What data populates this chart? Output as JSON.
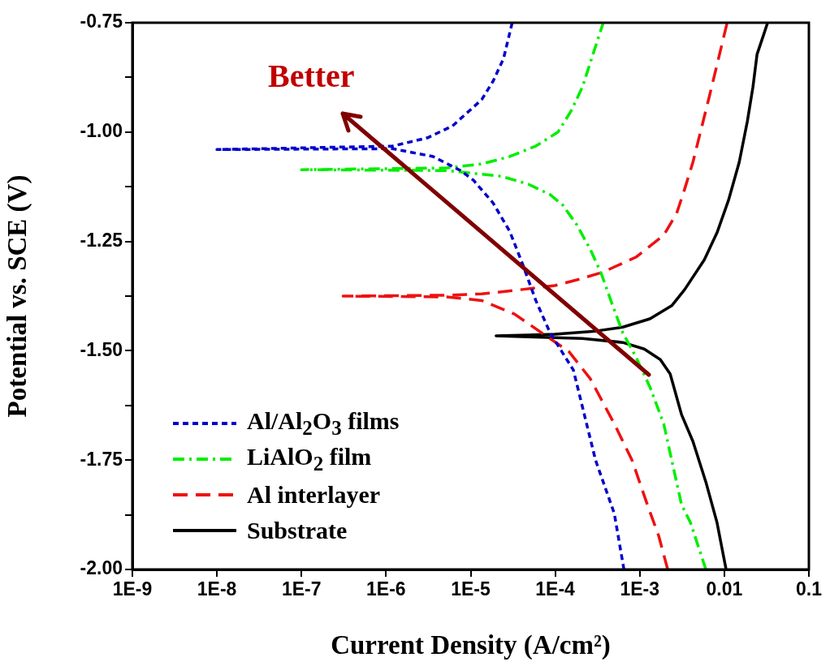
{
  "chart_data": {
    "type": "line",
    "xlabel": "Current Density (A/cm²)",
    "ylabel": "Potential vs. SCE (V)",
    "log": "x",
    "xlim": [
      1e-09,
      0.1
    ],
    "ylim": [
      -2.0,
      -0.75
    ],
    "xticks": [
      {
        "value": 1e-09,
        "label": "1E-9"
      },
      {
        "value": 1e-08,
        "label": "1E-8"
      },
      {
        "value": 1e-07,
        "label": "1E-7"
      },
      {
        "value": 1e-06,
        "label": "1E-6"
      },
      {
        "value": 1e-05,
        "label": "1E-5"
      },
      {
        "value": 0.0001,
        "label": "1E-4"
      },
      {
        "value": 0.001,
        "label": "1E-3"
      },
      {
        "value": 0.01,
        "label": "0.01"
      },
      {
        "value": 0.1,
        "label": "0.1"
      }
    ],
    "yticks": [
      {
        "value": -2.0,
        "label": "-2.00"
      },
      {
        "value": -1.875,
        "label": null
      },
      {
        "value": -1.75,
        "label": "-1.75"
      },
      {
        "value": -1.625,
        "label": null
      },
      {
        "value": -1.5,
        "label": "-1.50"
      },
      {
        "value": -1.375,
        "label": null
      },
      {
        "value": -1.25,
        "label": "-1.25"
      },
      {
        "value": -1.125,
        "label": null
      },
      {
        "value": -1.0,
        "label": "-1.00"
      },
      {
        "value": -0.875,
        "label": null
      },
      {
        "value": -0.75,
        "label": "-0.75"
      }
    ],
    "legend": "bottom left",
    "marker": "none",
    "annotations": [
      "Better"
    ],
    "series": [
      {
        "name": "Al/Al$_{2}$O$_{3}$ films",
        "color": "#0000cc",
        "line_style": "dotted",
        "x": [
          0.00065,
          0.0005,
          0.0003,
          0.000164,
          8.7e-05,
          5.9e-05,
          4.1e-05,
          2.9e-05,
          1.84e-05,
          1.08e-05,
          7.6e-06,
          3.6e-06,
          1.19e-06,
          1e-08,
          1.2e-06,
          3.1e-06,
          6.1e-06,
          1.35e-05,
          1.84e-05,
          2.45e-05,
          3.1e-05
        ],
        "values": [
          -2.0,
          -1.872,
          -1.75,
          -1.544,
          -1.459,
          -1.385,
          -1.301,
          -1.227,
          -1.162,
          -1.11,
          -1.088,
          -1.056,
          -1.038,
          -1.04,
          -1.032,
          -1.013,
          -0.986,
          -0.926,
          -0.884,
          -0.832,
          -0.75
        ]
      },
      {
        "name": "LiAlO$_{2}$ film",
        "color": "#00ee00",
        "line_style": "dashdot",
        "x": [
          0.00605,
          0.00398,
          0.00312,
          0.00192,
          0.00132,
          0.0009,
          0.00063,
          0.000465,
          0.00035,
          0.00026,
          0.00018,
          0.000123,
          8.7e-05,
          4.8e-05,
          2.3e-05,
          5.2e-06,
          1e-07,
          5.2e-06,
          1.35e-05,
          2.9e-05,
          5.9e-05,
          0.000108,
          0.000154,
          0.00021,
          0.00028,
          0.00037
        ],
        "values": [
          -2.0,
          -1.893,
          -1.852,
          -1.667,
          -1.583,
          -1.514,
          -1.459,
          -1.39,
          -1.323,
          -1.268,
          -1.212,
          -1.167,
          -1.143,
          -1.119,
          -1.101,
          -1.088,
          -1.086,
          -1.082,
          -1.073,
          -1.056,
          -1.032,
          -1.0,
          -0.952,
          -0.897,
          -0.822,
          -0.75
        ]
      },
      {
        "name": "Al interlayer",
        "color": "#ee1111",
        "line_style": "dashed",
        "x": [
          0.00214,
          0.00168,
          0.00123,
          0.00081,
          0.0005,
          0.00026,
          0.000144,
          6.9e-05,
          3.3e-05,
          1.35e-05,
          5.2e-06,
          3.1e-07,
          5.2e-06,
          1.35e-05,
          3.3e-05,
          9.9e-05,
          0.00018,
          0.00037,
          0.0009,
          0.00192,
          0.00273,
          0.0034,
          0.00425,
          0.0053,
          0.0066,
          0.0082,
          0.0108
        ],
        "values": [
          -2.0,
          -1.924,
          -1.852,
          -1.75,
          -1.667,
          -1.564,
          -1.501,
          -1.459,
          -1.416,
          -1.385,
          -1.377,
          -1.375,
          -1.373,
          -1.37,
          -1.362,
          -1.351,
          -1.338,
          -1.32,
          -1.286,
          -1.236,
          -1.186,
          -1.13,
          -1.069,
          -0.995,
          -0.921,
          -0.846,
          -0.75
        ]
      },
      {
        "name": "Substrate",
        "color": "#000000",
        "line_style": "solid",
        "x": [
          0.0105,
          0.0082,
          0.00605,
          0.00425,
          0.00312,
          0.00229,
          0.00175,
          0.00113,
          0.00063,
          0.00021,
          4.8e-05,
          2e-05,
          4.8e-05,
          9.9e-05,
          0.0003,
          0.00063,
          0.00132,
          0.00239,
          0.0034,
          0.0058,
          0.0082,
          0.0112,
          0.015,
          0.0187,
          0.0218,
          0.0244,
          0.0291,
          0.0325
        ],
        "values": [
          -2.0,
          -1.893,
          -1.8,
          -1.707,
          -1.646,
          -1.553,
          -1.52,
          -1.496,
          -1.481,
          -1.472,
          -1.468,
          -1.466,
          -1.464,
          -1.462,
          -1.455,
          -1.446,
          -1.427,
          -1.397,
          -1.36,
          -1.292,
          -1.23,
          -1.156,
          -1.069,
          -0.976,
          -0.897,
          -0.822,
          -0.778,
          -0.75
        ]
      }
    ]
  }
}
